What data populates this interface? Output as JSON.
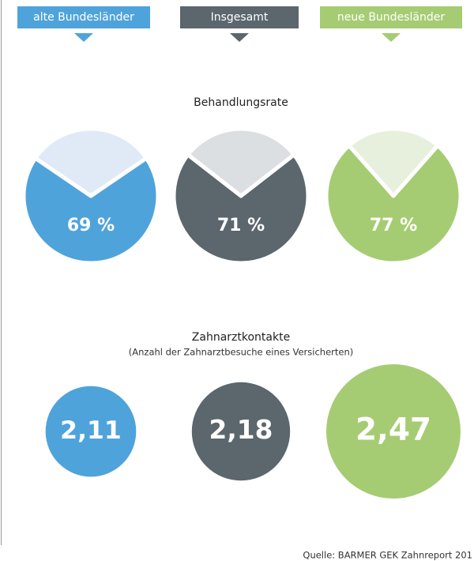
{
  "legend": {
    "items": [
      {
        "name": "alte Bundesländer",
        "color": "#4fa3db",
        "light": "#dfeaf6"
      },
      {
        "name": "Insgesamt",
        "color": "#5b666d",
        "light": "#dcdfe1"
      },
      {
        "name": "neue Bundesländer",
        "color": "#a6cc73",
        "light": "#e7f0dc"
      }
    ]
  },
  "chart_data": [
    {
      "type": "pie",
      "title": "Behandlungsrate",
      "values": [
        69,
        71,
        77
      ],
      "value_labels": [
        "69 %",
        "71 %",
        "77 %"
      ]
    },
    {
      "type": "bubble",
      "title": "Zahnarztkontakte",
      "subtitle": "(Anzahl der Zahnarztbesuche eines Versicherten)",
      "values": [
        2.11,
        2.18,
        2.47
      ],
      "value_labels": [
        "2,11",
        "2,18",
        "2,47"
      ]
    }
  ],
  "source": "Quelle: BARMER GEK Zahnreport 201"
}
